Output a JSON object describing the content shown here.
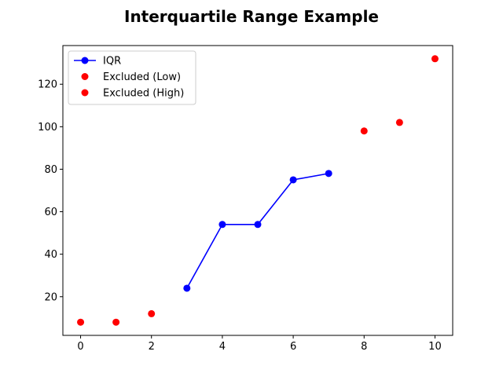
{
  "chart_data": {
    "type": "line",
    "title": "Interquartile Range Example",
    "xlabel": "",
    "ylabel": "",
    "xlim": [
      -0.5,
      10.5
    ],
    "ylim": [
      1.8,
      138.2
    ],
    "xticks": [
      0,
      2,
      4,
      6,
      8,
      10
    ],
    "yticks": [
      20,
      40,
      60,
      80,
      100,
      120
    ],
    "grid": false,
    "legend_position": "top-left",
    "series": [
      {
        "name": "IQR",
        "style": "line-marker",
        "color": "#0000ff",
        "x": [
          3,
          4,
          5,
          6,
          7
        ],
        "y": [
          24,
          54,
          54,
          75,
          78
        ]
      },
      {
        "name": "Excluded (Low)",
        "style": "scatter",
        "color": "#ff0000",
        "x": [
          0,
          1,
          2
        ],
        "y": [
          8,
          8,
          12
        ]
      },
      {
        "name": "Excluded (High)",
        "style": "scatter",
        "color": "#ff0000",
        "x": [
          8,
          9,
          10
        ],
        "y": [
          98,
          102,
          132
        ]
      }
    ]
  }
}
